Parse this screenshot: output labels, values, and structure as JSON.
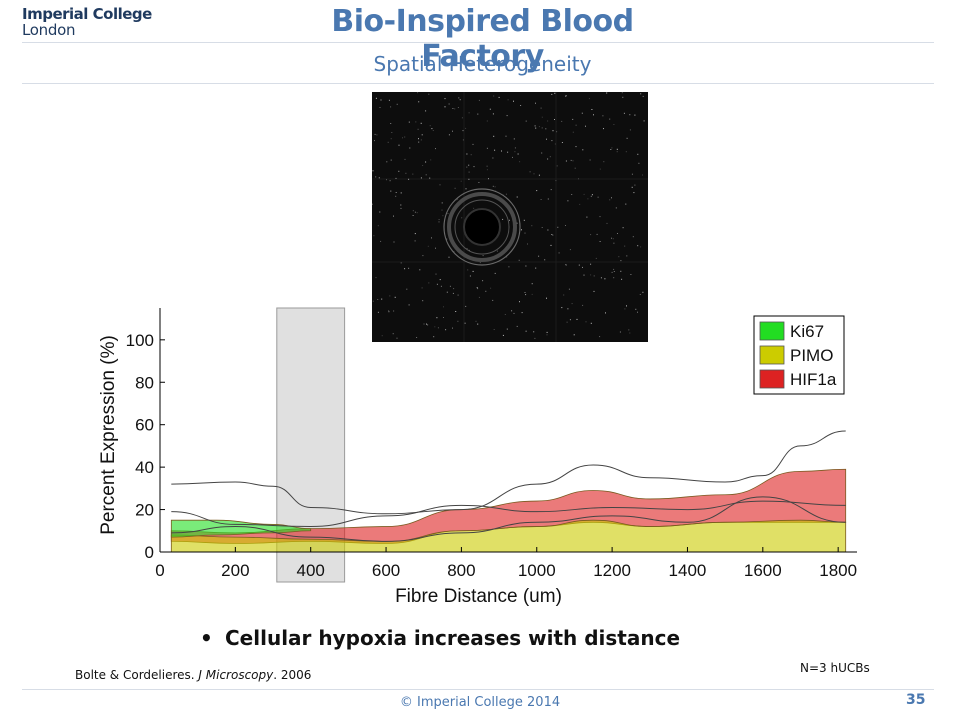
{
  "header": {
    "logo_line1": "Imperial College",
    "logo_line2": "London",
    "title": "Bio-Inspired Blood Factory",
    "subtitle": "Spatial Heterogeneity"
  },
  "bullet": "Cellular hypoxia increases with distance",
  "reference": {
    "authors": "Bolte & Cordelieres. ",
    "journal": "J Microscopy",
    "year": ". 2006"
  },
  "note": "N=3 hUCBs",
  "footer": "© Imperial College 2014",
  "page_number": "35",
  "colors": {
    "brand": "#4a78b0",
    "ki67": "#22dd22",
    "pimo": "#cccc00",
    "hif1a": "#dd2222"
  },
  "chart_data": {
    "type": "area",
    "xlabel": "Fibre Distance (um)",
    "ylabel": "Percent Expression (%)",
    "xlim": [
      0,
      1850
    ],
    "ylim": [
      0,
      115
    ],
    "xticks": [
      0,
      200,
      400,
      600,
      800,
      1000,
      1200,
      1400,
      1600,
      1800
    ],
    "yticks": [
      0,
      20,
      40,
      60,
      80,
      100
    ],
    "legend_position": "top-right",
    "highlight_band": {
      "x": [
        310,
        490
      ]
    },
    "series": [
      {
        "name": "HIF1a",
        "color": "#dd2222",
        "x": [
          30,
          200,
          400,
          600,
          800,
          1000,
          1150,
          1300,
          1500,
          1700,
          1820
        ],
        "lower": [
          5,
          4,
          5,
          4,
          10,
          12,
          14,
          12,
          14,
          14,
          14
        ],
        "upper": [
          10,
          9,
          11,
          12,
          20,
          24,
          29,
          25,
          27,
          38,
          39
        ]
      },
      {
        "name": "PIMO",
        "color": "#cccc00",
        "x": [
          30,
          200,
          400,
          600,
          800,
          1000,
          1150,
          1300,
          1500,
          1700,
          1820
        ],
        "lower": [
          0,
          0,
          0,
          0,
          0,
          0,
          0,
          0,
          0,
          0,
          0
        ],
        "upper": [
          8,
          7,
          6,
          5,
          10,
          12,
          15,
          12,
          14,
          15,
          14
        ]
      },
      {
        "name": "Ki67",
        "color": "#22dd22",
        "x": [
          30,
          150,
          300,
          400
        ],
        "lower": [
          7,
          8,
          9,
          10
        ],
        "upper": [
          15,
          15,
          13,
          11
        ]
      }
    ],
    "lines": [
      {
        "color": "#444444",
        "x": [
          30,
          200,
          300,
          400,
          600,
          800,
          1000,
          1150,
          1300,
          1500,
          1600,
          1700,
          1820
        ],
        "y": [
          32,
          33,
          31,
          21,
          18,
          20,
          32,
          41,
          35,
          33,
          36,
          50,
          57
        ]
      },
      {
        "color": "#444444",
        "x": [
          30,
          200,
          400,
          600,
          800,
          1000,
          1200,
          1400,
          1600,
          1820
        ],
        "y": [
          19,
          13,
          12,
          17,
          22,
          19,
          21,
          20,
          24,
          22
        ]
      },
      {
        "color": "#444444",
        "x": [
          30,
          200,
          400,
          600,
          800,
          1000,
          1200,
          1400,
          1600,
          1820
        ],
        "y": [
          9,
          12,
          7,
          5,
          9,
          14,
          17,
          14,
          26,
          14
        ]
      }
    ]
  }
}
